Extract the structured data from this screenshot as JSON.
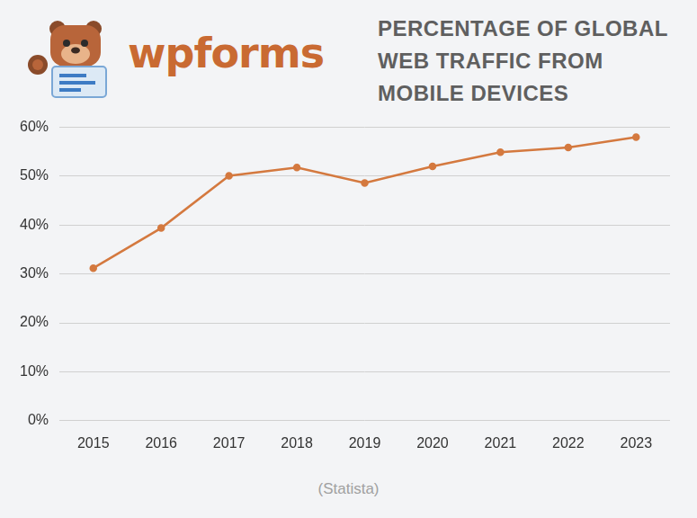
{
  "chart_data": {
    "type": "line",
    "title": "PERCENTAGE OF GLOBAL WEB TRAFFIC FROM MOBILE DEVICES",
    "logo": "wpforms",
    "source": "(Statista)",
    "categories": [
      "2015",
      "2016",
      "2017",
      "2018",
      "2019",
      "2020",
      "2021",
      "2022",
      "2023"
    ],
    "values": [
      31.2,
      39.4,
      50.1,
      51.8,
      48.6,
      52.0,
      54.9,
      55.9,
      58.0
    ],
    "color": "#d4793f",
    "ylim": [
      0,
      60
    ],
    "yticks": [
      {
        "value": 0,
        "label": "0%"
      },
      {
        "value": 10,
        "label": "10%"
      },
      {
        "value": 20,
        "label": "20%"
      },
      {
        "value": 30,
        "label": "30%"
      },
      {
        "value": 40,
        "label": "40%"
      },
      {
        "value": 50,
        "label": "50%"
      },
      {
        "value": 60,
        "label": "60%"
      }
    ],
    "grid": true
  }
}
